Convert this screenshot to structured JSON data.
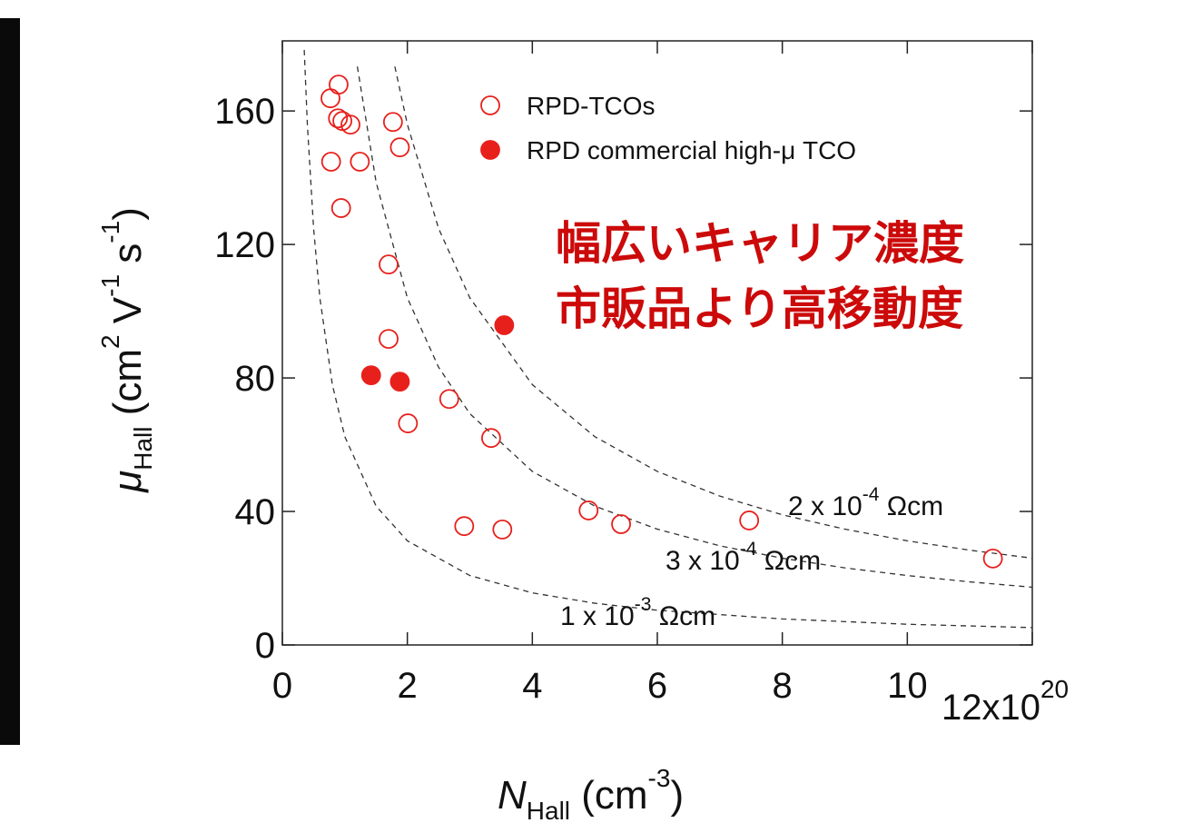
{
  "chart_data": {
    "type": "scatter",
    "xlim": [
      0,
      12
    ],
    "ylim": [
      0,
      181
    ],
    "xticks": [
      0,
      2,
      4,
      6,
      8,
      10,
      {
        "value": 12,
        "label": "12x10",
        "exponent": "20"
      }
    ],
    "yticks": [
      0,
      40,
      80,
      120,
      160
    ],
    "grid": false,
    "xlabel": [
      {
        "t": "N",
        "s": "it"
      },
      {
        "t": "Hall",
        "s": "sub"
      },
      {
        "t": " (cm",
        "s": ""
      },
      {
        "t": "-3",
        "s": "sup"
      },
      {
        "t": ")",
        "s": ""
      }
    ],
    "ylabel": [
      {
        "t": "μ",
        "s": "it"
      },
      {
        "t": "Hall",
        "s": "sub"
      },
      {
        "t": " (cm",
        "s": ""
      },
      {
        "t": "2",
        "s": "sup"
      },
      {
        "t": " V",
        "s": ""
      },
      {
        "t": "-1",
        "s": "sup"
      },
      {
        "t": " s",
        "s": ""
      },
      {
        "t": "-1",
        "s": "sup"
      },
      {
        "t": ")",
        "s": ""
      }
    ],
    "annotations": [
      "幅広いキャリア濃度",
      "市販品より高移動度"
    ],
    "annotation_color": "#cc0a0a",
    "series": [
      {
        "name": "RPD-TCOs",
        "color": "#e8201c",
        "marker": "open",
        "x": [
          0.77,
          0.9,
          0.89,
          0.96,
          1.09,
          0.78,
          1.24,
          0.94,
          1.77,
          1.88,
          1.7,
          1.7,
          2.67,
          2.01,
          3.34,
          2.91,
          3.52,
          4.9,
          5.42,
          7.47,
          11.37
        ],
        "values": [
          163.8,
          167.9,
          157.8,
          157.0,
          155.9,
          144.8,
          144.8,
          130.9,
          156.7,
          149.1,
          114.0,
          91.7,
          73.7,
          66.4,
          62.0,
          35.6,
          34.6,
          40.3,
          36.2,
          37.3,
          25.9
        ]
      },
      {
        "name": "RPD commercial high-μ TCO",
        "color": "#e8201c",
        "marker": "filled",
        "x": [
          1.42,
          1.88,
          3.55
        ],
        "values": [
          80.8,
          78.9,
          95.8
        ]
      }
    ],
    "curves": [
      {
        "label": {
          "base": "2 x 10",
          "exp": "-4",
          "unit": " Ωcm"
        },
        "x": [
          1.8,
          2,
          2.5,
          3,
          4,
          5,
          6,
          7,
          8,
          9,
          10,
          11,
          12
        ],
        "y": [
          173.3,
          156,
          124.8,
          104,
          78,
          62.4,
          52,
          44.6,
          39,
          34.7,
          31.2,
          28.4,
          26
        ]
      },
      {
        "label": {
          "base": "3 x 10",
          "exp": "-4",
          "unit": " Ωcm"
        },
        "x": [
          1.2,
          1.5,
          2,
          2.5,
          3,
          4,
          5,
          6,
          7,
          8,
          9,
          10,
          11,
          12
        ],
        "y": [
          173.3,
          138.7,
          104,
          83.2,
          69.3,
          52,
          41.6,
          34.7,
          29.7,
          26,
          23.1,
          20.8,
          18.9,
          17.3
        ]
      },
      {
        "label": {
          "base": "1 x 10",
          "exp": "-3",
          "unit": " Ωcm"
        },
        "x": [
          0.35,
          0.4,
          0.5,
          0.6,
          0.8,
          1,
          1.5,
          2,
          3,
          4,
          5,
          6,
          8,
          10,
          12
        ],
        "y": [
          178.3,
          156,
          124.8,
          104,
          78,
          62.4,
          41.6,
          31.2,
          20.8,
          15.6,
          12.5,
          10.4,
          7.8,
          6.2,
          5.2
        ]
      }
    ]
  }
}
